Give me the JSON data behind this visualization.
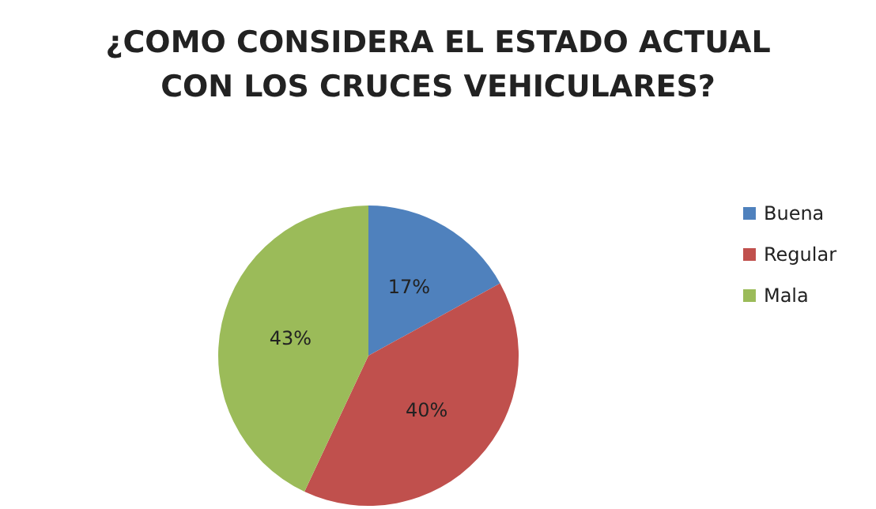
{
  "chart_data": {
    "type": "pie",
    "title": "¿COMO CONSIDERA EL ESTADO ACTUAL\nCON LOS CRUCES VEHICULARES?",
    "categories": [
      "Buena",
      "Regular",
      "Mala"
    ],
    "values": [
      17,
      40,
      43
    ],
    "colors": [
      "#4f81bd",
      "#c0504d",
      "#9bbb59"
    ],
    "value_labels": [
      "17%",
      "40%",
      "43%"
    ],
    "legend": "right"
  }
}
